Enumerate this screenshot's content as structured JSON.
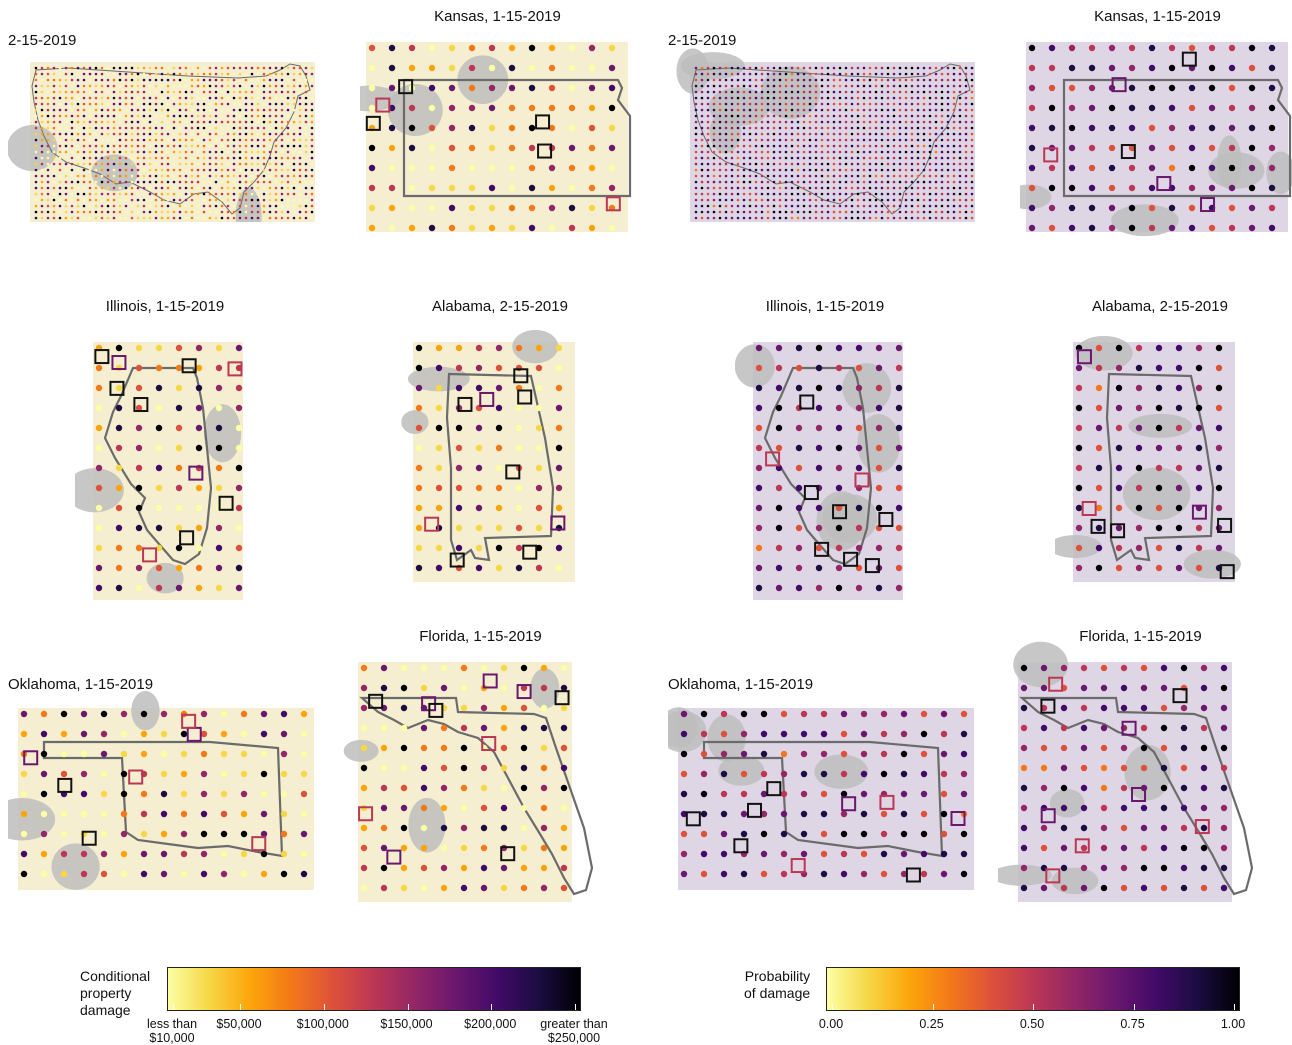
{
  "panels": [
    {
      "id": "us-2-15-2019-damage",
      "title": "2-15-2019",
      "scheme": "damage",
      "kind": "us"
    },
    {
      "id": "kansas-1-15-2019-damage",
      "title": "Kansas, 1-15-2019",
      "scheme": "damage",
      "kind": "kansas"
    },
    {
      "id": "us-2-15-2019-probability",
      "title": "2-15-2019",
      "scheme": "probability",
      "kind": "us"
    },
    {
      "id": "kansas-1-15-2019-probability",
      "title": "Kansas, 1-15-2019",
      "scheme": "probability",
      "kind": "kansas"
    },
    {
      "id": "illinois-1-15-2019-damage",
      "title": "Illinois, 1-15-2019",
      "scheme": "damage",
      "kind": "illinois"
    },
    {
      "id": "alabama-2-15-2019-damage",
      "title": "Alabama, 2-15-2019",
      "scheme": "damage",
      "kind": "alabama"
    },
    {
      "id": "illinois-1-15-2019-probability",
      "title": "Illinois, 1-15-2019",
      "scheme": "probability",
      "kind": "illinois"
    },
    {
      "id": "alabama-2-15-2019-probability",
      "title": "Alabama, 2-15-2019",
      "scheme": "probability",
      "kind": "alabama"
    },
    {
      "id": "oklahoma-1-15-2019-damage",
      "title": "Oklahoma, 1-15-2019",
      "scheme": "damage",
      "kind": "oklahoma"
    },
    {
      "id": "florida-1-15-2019-damage",
      "title": "Florida, 1-15-2019",
      "scheme": "damage",
      "kind": "florida"
    },
    {
      "id": "oklahoma-1-15-2019-probability",
      "title": "Oklahoma, 1-15-2019",
      "scheme": "probability",
      "kind": "oklahoma"
    },
    {
      "id": "florida-1-15-2019-probability",
      "title": "Florida, 1-15-2019",
      "scheme": "probability",
      "kind": "florida"
    }
  ],
  "legend_damage": {
    "title_lines": [
      "Conditional",
      "property",
      "damage"
    ],
    "ticks": [
      {
        "label": [
          "less than",
          "$10,000"
        ],
        "value": 10000
      },
      {
        "label": [
          "$50,000"
        ],
        "value": 50000
      },
      {
        "label": [
          "$100,000"
        ],
        "value": 100000
      },
      {
        "label": [
          "$150,000"
        ],
        "value": 150000
      },
      {
        "label": [
          "$200,000"
        ],
        "value": 200000
      },
      {
        "label": [
          "greater than",
          "$250,000"
        ],
        "value": 250000
      }
    ],
    "range": [
      10000,
      250000
    ]
  },
  "legend_probability": {
    "title_lines": [
      "Probability",
      "of damage"
    ],
    "ticks": [
      {
        "label": [
          "0.00"
        ],
        "value": 0
      },
      {
        "label": [
          "0.25"
        ],
        "value": 0.25
      },
      {
        "label": [
          "0.50"
        ],
        "value": 0.5
      },
      {
        "label": [
          "0.75"
        ],
        "value": 0.75
      },
      {
        "label": [
          "1.00"
        ],
        "value": 1
      }
    ],
    "range": [
      0,
      1
    ]
  },
  "colors": {
    "inferno": [
      "#fcffa4",
      "#f6d746",
      "#fca50a",
      "#f37819",
      "#dd513a",
      "#bc3754",
      "#932667",
      "#6a176e",
      "#420a68",
      "#1b0c41",
      "#000004"
    ],
    "no_data_gray": "#bdbdbd",
    "outline": "#6b6b6b"
  }
}
